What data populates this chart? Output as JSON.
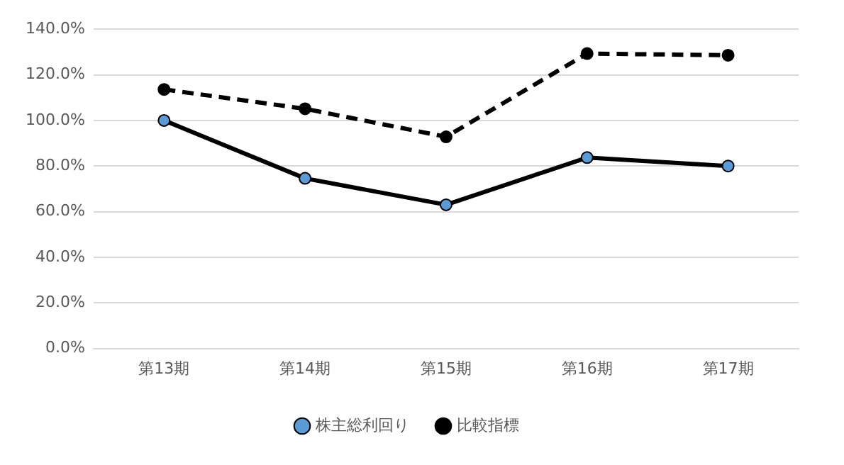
{
  "chart_data": {
    "type": "line",
    "categories": [
      "第13期",
      "第14期",
      "第15期",
      "第16期",
      "第17期"
    ],
    "series": [
      {
        "name": "株主総利回り",
        "color": "#000000",
        "colors": [
          "#5b9bd5",
          "#5b9bd5",
          "#5b9bd5",
          "#5b9bd5",
          "#5b9bd5"
        ],
        "line_style": "solid",
        "values": [
          100,
          74.6,
          63,
          83.7,
          80
        ]
      },
      {
        "name": "比較指標",
        "color": "#000000",
        "line_style": "dashed",
        "values": [
          113.6,
          105.1,
          92.8,
          129.3,
          128.6
        ]
      }
    ],
    "ylim": [
      0,
      140
    ],
    "yticks": [
      {
        "value": 0,
        "label": "0.0%"
      },
      {
        "value": 20,
        "label": "20.0%"
      },
      {
        "value": 40,
        "label": "40.0%"
      },
      {
        "value": 60,
        "label": "60.0%"
      },
      {
        "value": 80,
        "label": "80.0%"
      },
      {
        "value": 100,
        "label": "100.0%"
      },
      {
        "value": 120,
        "label": "120.0%"
      },
      {
        "value": 140,
        "label": "140.0%"
      }
    ],
    "grid": "y",
    "legend": "bottom",
    "marker": "circle"
  }
}
